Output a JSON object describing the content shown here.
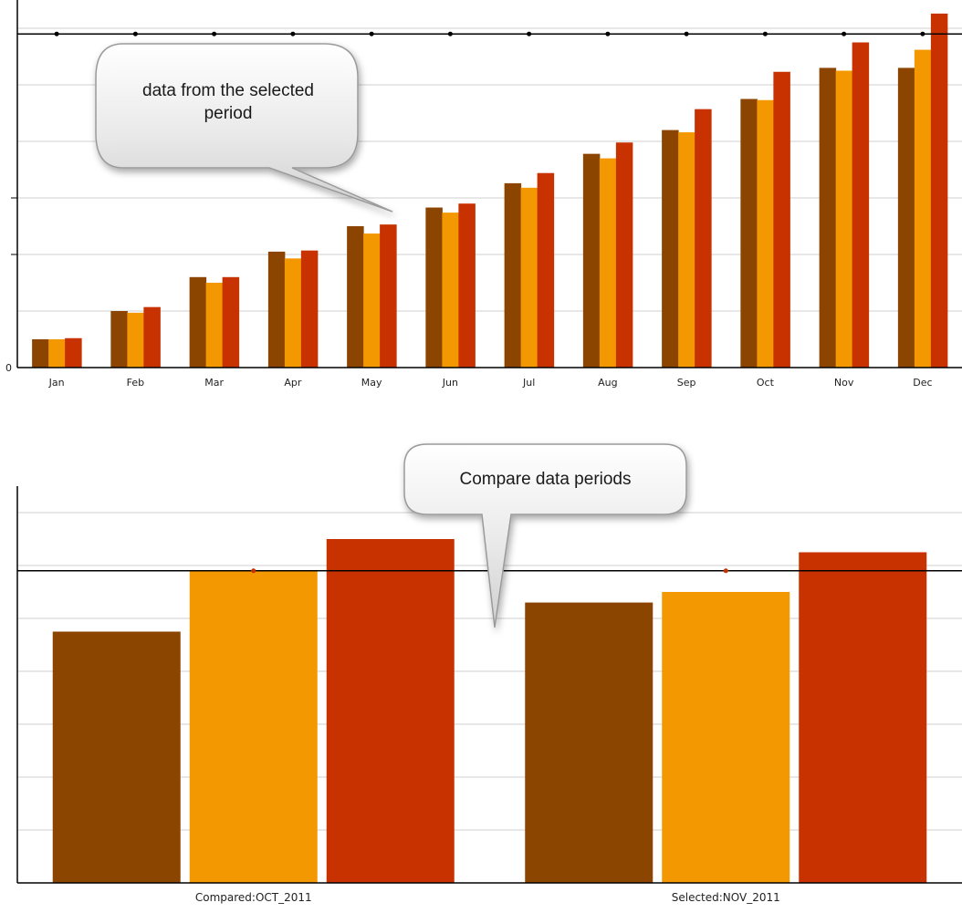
{
  "chart_data": [
    {
      "type": "bar",
      "categories": [
        "Jan",
        "Feb",
        "Mar",
        "Apr",
        "May",
        "Jun",
        "Jul",
        "Aug",
        "Sep",
        "Oct",
        "Nov",
        "Dec"
      ],
      "y_tick_labels": [
        "0"
      ],
      "reference_line": 5.9,
      "ylim": [
        0,
        6.5
      ],
      "series": [
        {
          "color": "#8b4500",
          "values": [
            0.5,
            1.0,
            1.6,
            2.05,
            2.5,
            2.83,
            3.26,
            3.78,
            4.2,
            4.75,
            5.3,
            5.3
          ]
        },
        {
          "color": "#f39800",
          "values": [
            0.5,
            0.97,
            1.5,
            1.93,
            2.37,
            2.74,
            3.18,
            3.7,
            4.16,
            4.73,
            5.25,
            5.62
          ]
        },
        {
          "color": "#c83200",
          "values": [
            0.52,
            1.07,
            1.6,
            2.07,
            2.53,
            2.9,
            3.44,
            3.98,
            4.57,
            5.23,
            5.75,
            6.26
          ]
        }
      ]
    },
    {
      "type": "bar",
      "categories": [
        "Compared:OCT_2011",
        "Selected:NOV_2011"
      ],
      "reference_line": 5.9,
      "ylim": [
        0,
        7.5
      ],
      "series": [
        {
          "color": "#8b4500",
          "values": [
            4.75,
            5.3
          ]
        },
        {
          "color": "#f39800",
          "values": [
            5.9,
            5.5
          ]
        },
        {
          "color": "#c83200",
          "values": [
            6.5,
            6.25
          ]
        }
      ]
    }
  ],
  "annotations": {
    "top_callout": "data from the selected period",
    "bottom_callout": "Compare data periods"
  }
}
